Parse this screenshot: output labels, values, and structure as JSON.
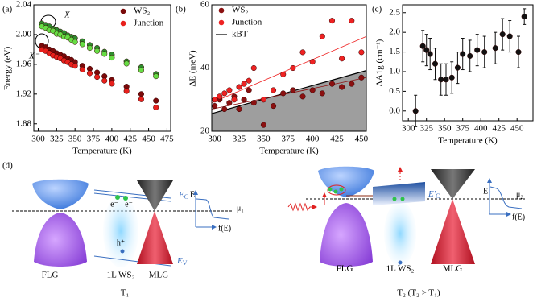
{
  "chart_data": [
    {
      "type": "scatter",
      "label": "(a)",
      "xlabel": "Temperature (K)",
      "ylabel": "Energy (eV)",
      "xlim": [
        294,
        480
      ],
      "ylim": [
        1.87,
        2.04
      ],
      "xticks": [
        300,
        325,
        350,
        375,
        400,
        425,
        450,
        475
      ],
      "yticks": [
        1.88,
        1.92,
        1.96,
        {
          "value": 2,
          "label": "2.00"
        },
        2.04
      ],
      "x": [
        305,
        310,
        315,
        320,
        325,
        330,
        335,
        340,
        345,
        350,
        360,
        370,
        380,
        390,
        400,
        420,
        440,
        460
      ],
      "series": [
        {
          "name": "WS₂",
          "color": "#7a0a0a",
          "values": [
            1.985,
            1.983,
            1.98,
            1.978,
            1.975,
            1.973,
            1.971,
            1.968,
            1.966,
            1.963,
            1.958,
            1.954,
            1.949,
            1.944,
            1.939,
            1.93,
            1.92,
            1.911
          ]
        },
        {
          "name": "Junction",
          "color": "#e8201c",
          "values": [
            1.98,
            1.978,
            1.975,
            1.972,
            1.97,
            1.968,
            1.965,
            1.963,
            1.96,
            1.958,
            1.953,
            1.948,
            1.943,
            1.938,
            1.934,
            1.924,
            1.913,
            1.902
          ]
        }
      ],
      "upper_series": [
        {
          "color": "#2e8b2e",
          "values": [
            2.015,
            2.013,
            2.011,
            2.008,
            2.006,
            2.004,
            2.002,
            1.999,
            1.997,
            1.995,
            1.991,
            1.986,
            1.982,
            1.977,
            1.973,
            1.964,
            1.956,
            1.947
          ]
        },
        {
          "color": "#66dd44",
          "values": [
            2.011,
            2.009,
            2.006,
            2.005,
            2.001,
            2,
            1.997,
            1.996,
            1.993,
            1.99,
            1.987,
            1.982,
            1.978,
            1.974,
            1.969,
            1.961,
            1.952,
            1.944
          ]
        }
      ],
      "annotations": [
        "X",
        "X⁻"
      ]
    },
    {
      "type": "scatter",
      "label": "(b)",
      "xlabel": "Temperature (K)",
      "ylabel": "ΔE (meV)",
      "xlim": [
        297,
        455
      ],
      "ylim": [
        20,
        60
      ],
      "xticks": [
        300,
        325,
        350,
        375,
        400,
        425,
        450
      ],
      "yticks": [
        20,
        40,
        60
      ],
      "x": [
        300,
        305,
        310,
        315,
        320,
        325,
        330,
        335,
        340,
        350,
        360,
        370,
        380,
        390,
        400,
        410,
        420,
        430,
        440,
        450
      ],
      "fit_x": [
        297,
        455
      ],
      "series": [
        {
          "name": "kBT",
          "color": "#000000",
          "area_color": "#9e9e9e",
          "x": [
            297,
            455
          ],
          "values": [
            25.6,
            39.2
          ]
        },
        {
          "name": "WS₂",
          "color": "#8b1010",
          "values": [
            28,
            30,
            27,
            29,
            31,
            27,
            30,
            33,
            29,
            22,
            28,
            32,
            33,
            31,
            33,
            32,
            35,
            34,
            35,
            37
          ],
          "fit": [
            27,
            37
          ]
        },
        {
          "name": "Junction",
          "color": "#ee2222",
          "values": [
            30,
            31,
            32,
            33,
            30,
            34,
            35,
            36,
            40,
            30,
            33,
            38,
            40,
            45,
            42,
            50,
            55,
            43,
            55,
            45
          ],
          "fit": [
            29,
            50
          ]
        }
      ]
    },
    {
      "type": "scatter",
      "label": "(c)",
      "xlabel": "Temperature (K)",
      "ylabel": "ΔA1g (cm⁻¹)",
      "xlim": [
        292,
        472
      ],
      "ylim": [
        -0.25,
        2.7
      ],
      "xticks": [
        300,
        325,
        350,
        375,
        400,
        425,
        450
      ],
      "yticks": [
        {
          "value": 0,
          "label": "0.0"
        },
        0.5,
        {
          "value": 1,
          "label": "1.0"
        },
        1.5,
        {
          "value": 2,
          "label": "2.0"
        },
        2.5
      ],
      "color": "#111111",
      "x": [
        310,
        320,
        325,
        330,
        337,
        345,
        352,
        360,
        368,
        375,
        385,
        395,
        405,
        420,
        430,
        440,
        452,
        460
      ],
      "values": [
        0,
        1.65,
        1.55,
        1.45,
        1.2,
        0.8,
        0.8,
        0.85,
        1.1,
        1.45,
        1.4,
        1.55,
        1.5,
        1.6,
        1.95,
        1.9,
        1.5,
        2.4
      ],
      "errors": [
        0.4,
        0.4,
        0.4,
        0.4,
        0.4,
        0.4,
        0.4,
        0.4,
        0.4,
        0.4,
        0.4,
        0.4,
        0.4,
        0.4,
        0.4,
        0.4,
        0.4,
        0.2
      ]
    }
  ],
  "diagram": {
    "label": "(d)",
    "left": {
      "conduction": {
        "main": "E",
        "sub": "C"
      },
      "valence": {
        "main": "E",
        "sub": "V"
      },
      "carriers": [
        "e⁻",
        "e⁻",
        "h⁺"
      ],
      "inset_axis": "E",
      "inset_function": "f(E)",
      "chemical_potential": "μ₁",
      "materials": [
        "FLG",
        "1L WS₂",
        "MLG"
      ],
      "temperature": "T₁"
    },
    "right": {
      "conduction": {
        "main": "E′",
        "sub": "C"
      },
      "inset_axis": "E",
      "inset_function": "f(E)",
      "chemical_potential": "μ₂",
      "materials": [
        "FLG",
        "1L WS₂",
        "MLG"
      ],
      "temperature": "T₂ (T₂ > T₁)"
    }
  }
}
